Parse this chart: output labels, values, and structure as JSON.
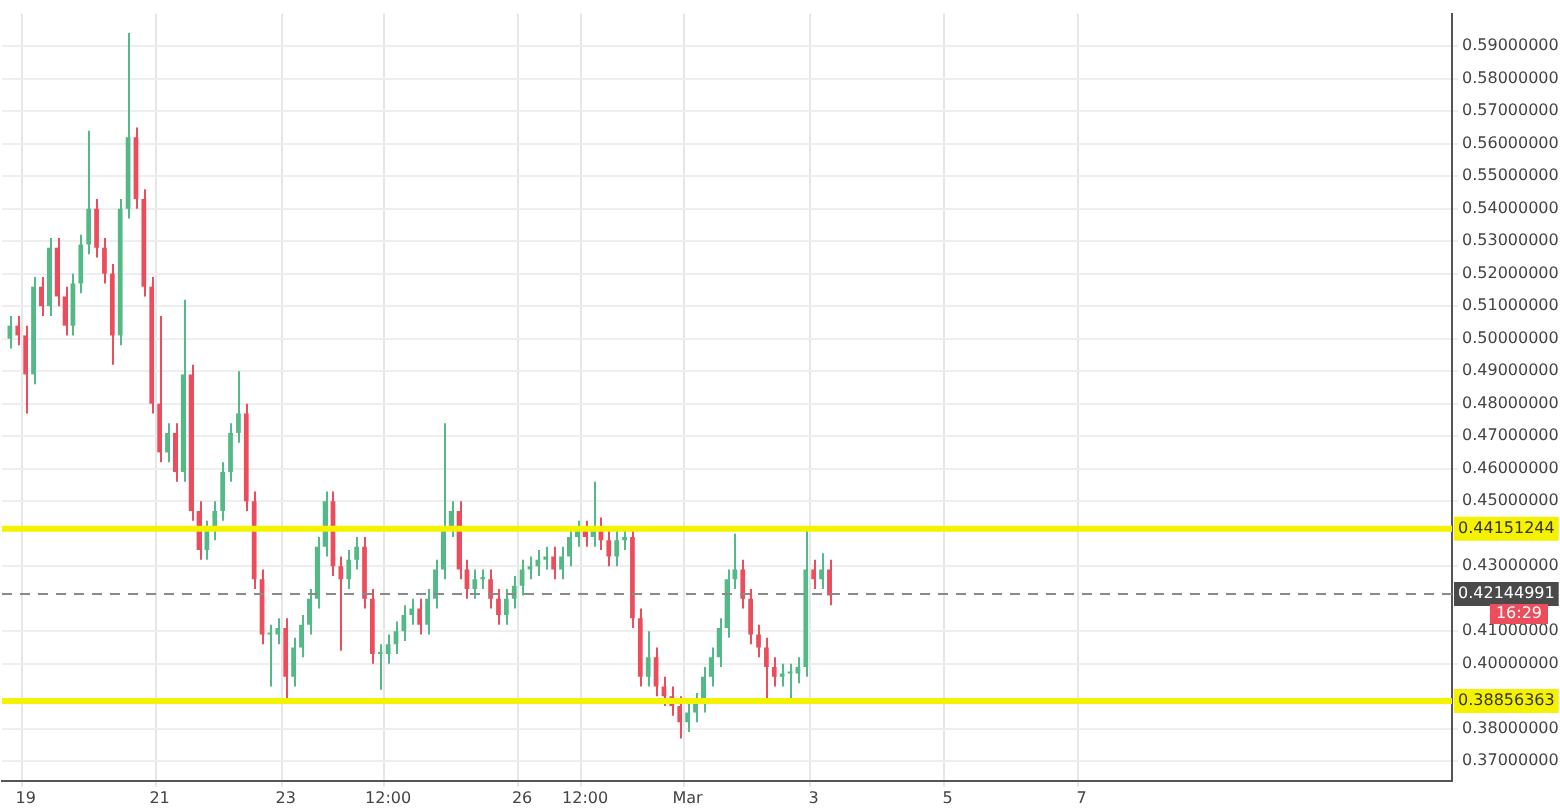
{
  "chart_data": {
    "type": "candlestick",
    "categories": [
      null,
      null,
      null,
      "19",
      null,
      null,
      null,
      null,
      null,
      null,
      null,
      null,
      null,
      null,
      null,
      null,
      null,
      null,
      null,
      null,
      "21",
      null,
      null,
      null,
      null,
      null,
      null,
      null,
      null,
      null,
      null,
      null,
      null,
      null,
      null,
      null,
      "23",
      null,
      null,
      null,
      null,
      null,
      null,
      null,
      null,
      null,
      null,
      null,
      null,
      "12:00",
      null,
      null,
      null,
      null,
      null,
      null,
      null,
      null,
      null,
      null,
      null,
      null,
      null,
      null,
      null,
      null,
      "26",
      null,
      null,
      null,
      null,
      null,
      null,
      null,
      "12:00",
      null,
      null,
      null,
      null,
      null,
      null,
      null,
      null,
      null,
      null,
      null,
      null,
      "Mar",
      null,
      null,
      null,
      null,
      null,
      null,
      null,
      null,
      null,
      null,
      null,
      null,
      null,
      null,
      null,
      "3",
      null,
      null,
      null,
      null,
      null,
      null,
      null,
      null,
      null,
      null,
      null,
      null,
      null,
      null,
      null,
      null,
      "5",
      null,
      null,
      null,
      null,
      null,
      null,
      null,
      null,
      null,
      null,
      null,
      null,
      null,
      null,
      null,
      null,
      "7",
      null,
      null,
      null,
      null,
      null,
      null,
      null,
      null,
      null,
      null,
      null,
      null,
      null,
      null,
      null,
      null,
      null,
      null,
      null,
      null,
      null,
      null,
      null,
      null,
      null,
      null,
      null,
      null,
      null,
      null,
      null,
      null,
      null,
      null,
      null,
      null,
      null,
      null,
      null,
      null,
      null,
      null,
      null,
      null,
      null,
      null,
      null
    ],
    "ohlc": [
      null,
      [
        0.5,
        0.507,
        0.497,
        0.504
      ],
      [
        0.504,
        0.507,
        0.498,
        0.501
      ],
      [
        0.501,
        0.504,
        0.477,
        0.489
      ],
      [
        0.489,
        0.519,
        0.486,
        0.516
      ],
      [
        0.516,
        0.519,
        0.507,
        0.51
      ],
      [
        0.51,
        0.531,
        0.507,
        0.528
      ],
      [
        0.528,
        0.531,
        0.51,
        0.513
      ],
      [
        0.513,
        0.516,
        0.501,
        0.504
      ],
      [
        0.504,
        0.52,
        0.501,
        0.517
      ],
      [
        0.517,
        0.532,
        0.514,
        0.529
      ],
      [
        0.529,
        0.564,
        0.526,
        0.54
      ],
      [
        0.54,
        0.543,
        0.525,
        0.528
      ],
      [
        0.528,
        0.531,
        0.517,
        0.52
      ],
      [
        0.52,
        0.523,
        0.492,
        0.501
      ],
      [
        0.501,
        0.543,
        0.498,
        0.54
      ],
      [
        0.54,
        0.594,
        0.537,
        0.562
      ],
      [
        0.562,
        0.565,
        0.54,
        0.543
      ],
      [
        0.543,
        0.546,
        0.513,
        0.516
      ],
      [
        0.516,
        0.519,
        0.477,
        0.48
      ],
      [
        0.48,
        0.507,
        0.462,
        0.465
      ],
      [
        0.465,
        0.474,
        0.462,
        0.471
      ],
      [
        0.471,
        0.474,
        0.456,
        0.459
      ],
      [
        0.459,
        0.512,
        0.456,
        0.489
      ],
      [
        0.489,
        0.492,
        0.444,
        0.447
      ],
      [
        0.447,
        0.45,
        0.432,
        0.435
      ],
      [
        0.435,
        0.444,
        0.432,
        0.441
      ],
      [
        0.441,
        0.45,
        0.438,
        0.447
      ],
      [
        0.447,
        0.462,
        0.444,
        0.459
      ],
      [
        0.459,
        0.474,
        0.456,
        0.471
      ],
      [
        0.471,
        0.49,
        0.468,
        0.477
      ],
      [
        0.477,
        0.48,
        0.447,
        0.45
      ],
      [
        0.45,
        0.453,
        0.423,
        0.426
      ],
      [
        0.426,
        0.429,
        0.406,
        0.409
      ],
      [
        0.409,
        0.412,
        0.393,
        0.409
      ],
      [
        0.409,
        0.414,
        0.406,
        0.411
      ],
      [
        0.411,
        0.414,
        0.389,
        0.396
      ],
      [
        0.396,
        0.408,
        0.393,
        0.405
      ],
      [
        0.405,
        0.415,
        0.402,
        0.412
      ],
      [
        0.412,
        0.423,
        0.409,
        0.42
      ],
      [
        0.42,
        0.439,
        0.417,
        0.436
      ],
      [
        0.436,
        0.453,
        0.433,
        0.45
      ],
      [
        0.45,
        0.453,
        0.427,
        0.43
      ],
      [
        0.43,
        0.433,
        0.404,
        0.426
      ],
      [
        0.426,
        0.435,
        0.423,
        0.432
      ],
      [
        0.432,
        0.439,
        0.429,
        0.436
      ],
      [
        0.436,
        0.439,
        0.417,
        0.42
      ],
      [
        0.42,
        0.423,
        0.4,
        0.403
      ],
      [
        0.403,
        0.406,
        0.392,
        0.403
      ],
      [
        0.403,
        0.409,
        0.4,
        0.406
      ],
      [
        0.406,
        0.413,
        0.403,
        0.41
      ],
      [
        0.41,
        0.418,
        0.407,
        0.415
      ],
      [
        0.415,
        0.42,
        0.412,
        0.417
      ],
      [
        0.417,
        0.42,
        0.409,
        0.412
      ],
      [
        0.412,
        0.423,
        0.409,
        0.42
      ],
      [
        0.42,
        0.432,
        0.417,
        0.429
      ],
      [
        0.429,
        0.474,
        0.426,
        0.442
      ],
      [
        0.442,
        0.45,
        0.439,
        0.447
      ],
      [
        0.447,
        0.45,
        0.426,
        0.429
      ],
      [
        0.429,
        0.432,
        0.42,
        0.423
      ],
      [
        0.423,
        0.429,
        0.42,
        0.426
      ],
      [
        0.426,
        0.429,
        0.423,
        0.426
      ],
      [
        0.426,
        0.429,
        0.417,
        0.42
      ],
      [
        0.42,
        0.423,
        0.412,
        0.415
      ],
      [
        0.415,
        0.423,
        0.412,
        0.42
      ],
      [
        0.42,
        0.427,
        0.417,
        0.424
      ],
      [
        0.424,
        0.432,
        0.421,
        0.429
      ],
      [
        0.429,
        0.433,
        0.426,
        0.43
      ],
      [
        0.43,
        0.435,
        0.427,
        0.432
      ],
      [
        0.432,
        0.436,
        0.429,
        0.433
      ],
      [
        0.433,
        0.436,
        0.426,
        0.429
      ],
      [
        0.429,
        0.436,
        0.426,
        0.433
      ],
      [
        0.433,
        0.442,
        0.43,
        0.439
      ],
      [
        0.439,
        0.444,
        0.436,
        0.441
      ],
      [
        0.441,
        0.444,
        0.436,
        0.439
      ],
      [
        0.439,
        0.456,
        0.436,
        0.442
      ],
      [
        0.442,
        0.445,
        0.435,
        0.438
      ],
      [
        0.438,
        0.441,
        0.43,
        0.433
      ],
      [
        0.433,
        0.441,
        0.43,
        0.438
      ],
      [
        0.438,
        0.442,
        0.435,
        0.439
      ],
      [
        0.439,
        0.442,
        0.411,
        0.414
      ],
      [
        0.414,
        0.417,
        0.393,
        0.396
      ],
      [
        0.396,
        0.41,
        0.393,
        0.402
      ],
      [
        0.402,
        0.405,
        0.39,
        0.393
      ],
      [
        0.393,
        0.396,
        0.387,
        0.39
      ],
      [
        0.39,
        0.393,
        0.384,
        0.387
      ],
      [
        0.387,
        0.39,
        0.377,
        0.382
      ],
      [
        0.382,
        0.388,
        0.379,
        0.385
      ],
      [
        0.385,
        0.391,
        0.382,
        0.388
      ],
      [
        0.388,
        0.399,
        0.385,
        0.396
      ],
      [
        0.396,
        0.405,
        0.393,
        0.402
      ],
      [
        0.402,
        0.414,
        0.399,
        0.411
      ],
      [
        0.411,
        0.429,
        0.408,
        0.426
      ],
      [
        0.426,
        0.44,
        0.423,
        0.429
      ],
      [
        0.429,
        0.432,
        0.417,
        0.42
      ],
      [
        0.42,
        0.423,
        0.406,
        0.409
      ],
      [
        0.409,
        0.412,
        0.402,
        0.405
      ],
      [
        0.405,
        0.408,
        0.388,
        0.399
      ],
      [
        0.399,
        0.402,
        0.393,
        0.396
      ],
      [
        0.396,
        0.4,
        0.393,
        0.397
      ],
      [
        0.397,
        0.4,
        0.389,
        0.397
      ],
      [
        0.397,
        0.402,
        0.394,
        0.399
      ],
      [
        0.399,
        0.441,
        0.396,
        0.429
      ],
      [
        0.429,
        0.432,
        0.423,
        0.426
      ],
      [
        0.426,
        0.434,
        0.423,
        0.429
      ],
      [
        0.429,
        0.432,
        0.418,
        0.421
      ],
      null,
      null,
      null,
      null,
      null,
      null,
      null,
      null,
      null,
      null,
      null,
      null,
      null,
      null,
      null,
      null,
      null,
      null,
      null,
      null,
      null,
      null,
      null,
      null,
      null,
      null,
      null,
      null,
      null,
      null,
      null,
      null,
      null,
      null,
      null,
      null,
      null,
      null,
      null,
      null,
      null,
      null,
      null,
      null,
      null,
      null,
      null,
      null,
      null,
      null,
      null,
      null,
      null,
      null,
      null,
      null,
      null,
      null,
      null,
      null,
      null,
      null,
      null,
      null,
      null,
      null,
      null,
      null,
      null,
      null,
      null,
      null,
      null,
      null,
      null,
      null,
      null,
      null,
      null
    ],
    "ylim": [
      0.364,
      0.6
    ],
    "yticks": [
      {
        "value": 0.37,
        "label": "0.37000000"
      },
      {
        "value": 0.38,
        "label": "0.38000000"
      },
      {
        "value": 0.4,
        "label": "0.40000000"
      },
      {
        "value": 0.41,
        "label": "0.41000000"
      },
      {
        "value": 0.43,
        "label": "0.43000000"
      },
      {
        "value": 0.45,
        "label": "0.45000000"
      },
      {
        "value": 0.46,
        "label": "0.46000000"
      },
      {
        "value": 0.47,
        "label": "0.47000000"
      },
      {
        "value": 0.48,
        "label": "0.48000000"
      },
      {
        "value": 0.49,
        "label": "0.49000000"
      },
      {
        "value": 0.5,
        "label": "0.50000000"
      },
      {
        "value": 0.51,
        "label": "0.51000000"
      },
      {
        "value": 0.52,
        "label": "0.52000000"
      },
      {
        "value": 0.53,
        "label": "0.53000000"
      },
      {
        "value": 0.54,
        "label": "0.54000000"
      },
      {
        "value": 0.55,
        "label": "0.55000000"
      },
      {
        "value": 0.56,
        "label": "0.56000000"
      },
      {
        "value": 0.57,
        "label": "0.57000000"
      },
      {
        "value": 0.58,
        "label": "0.58000000"
      },
      {
        "value": 0.59,
        "label": "0.59000000"
      }
    ],
    "ref_lines": [
      {
        "axis": "y",
        "value": 0.44151244,
        "label": "0.44151244",
        "color": "#f5f200"
      },
      {
        "axis": "y",
        "value": 0.38856363,
        "label": "0.38856363",
        "color": "#f5f200"
      },
      {
        "axis": "y",
        "value": 0.42144991,
        "label": "0.42144991",
        "color": "#8a8a8a",
        "line_style": "dashed"
      }
    ],
    "annotations": [
      "16:29"
    ],
    "grid": true,
    "legend": false
  }
}
